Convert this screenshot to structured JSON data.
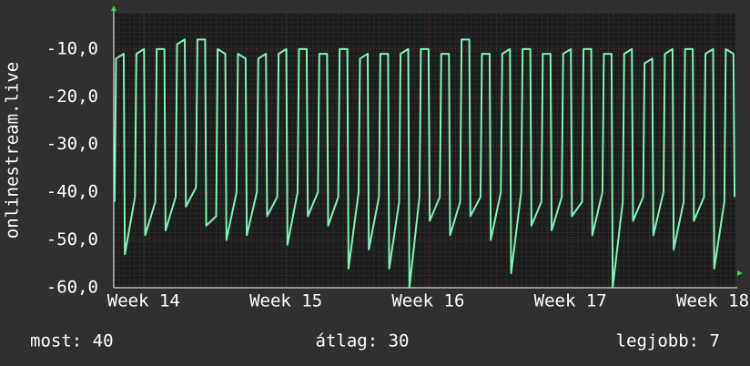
{
  "chart_data": {
    "type": "line",
    "y_label": "onlinestream.live",
    "x": [
      13.796,
      13.806,
      13.86,
      13.868,
      13.939,
      13.949,
      14.003,
      14.011,
      14.082,
      14.092,
      14.146,
      14.154,
      14.225,
      14.235,
      14.289,
      14.297,
      14.368,
      14.378,
      14.432,
      14.44,
      14.51,
      14.52,
      14.574,
      14.582,
      14.653,
      14.663,
      14.717,
      14.725,
      14.796,
      14.806,
      14.86,
      14.868,
      14.939,
      14.949,
      15.003,
      15.011,
      15.082,
      15.092,
      15.146,
      15.154,
      15.225,
      15.235,
      15.289,
      15.297,
      15.368,
      15.378,
      15.432,
      15.44,
      15.511,
      15.521,
      15.575,
      15.583,
      15.654,
      15.664,
      15.718,
      15.726,
      15.796,
      15.806,
      15.86,
      15.868,
      15.939,
      15.949,
      16.003,
      16.011,
      16.082,
      16.092,
      16.146,
      16.154,
      16.225,
      16.235,
      16.289,
      16.297,
      16.368,
      16.378,
      16.432,
      16.44,
      16.511,
      16.521,
      16.575,
      16.583,
      16.654,
      16.664,
      16.718,
      16.726,
      16.796,
      16.806,
      16.86,
      16.868,
      16.939,
      16.949,
      17.003,
      17.011,
      17.082,
      17.092,
      17.146,
      17.154,
      17.225,
      17.235,
      17.289,
      17.297,
      17.368,
      17.378,
      17.432,
      17.44,
      17.511,
      17.521,
      17.575,
      17.583,
      17.654,
      17.664,
      17.718,
      17.726,
      17.796,
      17.806,
      17.86,
      17.868,
      17.939,
      17.949,
      18.003,
      18.011,
      18.082,
      18.092,
      18.146,
      18.154
    ],
    "series": [
      {
        "color": "#7ff5b5",
        "values": [
          -42,
          -12,
          -11,
          -53,
          -41,
          -11,
          -10,
          -49,
          -42,
          -10,
          -10,
          -48,
          -41,
          -9,
          -8,
          -43,
          -39,
          -8,
          -8,
          -47,
          -45,
          -10,
          -11,
          -50,
          -40,
          -11,
          -12,
          -49,
          -40,
          -12,
          -11,
          -45,
          -41,
          -11,
          -10,
          -51,
          -40,
          -10,
          -10,
          -45,
          -40,
          -11,
          -11,
          -47,
          -41,
          -10,
          -10,
          -56,
          -40,
          -12,
          -11,
          -52,
          -41,
          -11,
          -11,
          -56,
          -42,
          -11,
          -10,
          -60,
          -41,
          -10,
          -10,
          -46,
          -41,
          -11,
          -11,
          -49,
          -42,
          -8,
          -8,
          -45,
          -41,
          -11,
          -11,
          -50,
          -40,
          -11,
          -10,
          -57,
          -40,
          -10,
          -10,
          -47,
          -42,
          -11,
          -11,
          -48,
          -41,
          -11,
          -10,
          -45,
          -42,
          -10,
          -10,
          -49,
          -40,
          -11,
          -11,
          -60,
          -42,
          -11,
          -10,
          -46,
          -41,
          -13,
          -12,
          -49,
          -40,
          -11,
          -10,
          -52,
          -42,
          -10,
          -10,
          -46,
          -41,
          -11,
          -10,
          -56,
          -42,
          -10,
          -11,
          -41
        ]
      }
    ],
    "xlim": [
      13.79,
      18.16
    ],
    "xticks": [
      {
        "value": 14,
        "label": "Week 14"
      },
      {
        "value": 15,
        "label": "Week 15"
      },
      {
        "value": 16,
        "label": "Week 16"
      },
      {
        "value": 17,
        "label": "Week 17"
      },
      {
        "value": 18,
        "label": "Week 18"
      }
    ],
    "ylim": [
      -60,
      -2.4
    ],
    "yticks": [
      {
        "value": -60,
        "label": "-60,0"
      },
      {
        "value": -50,
        "label": "-50,0"
      },
      {
        "value": -40,
        "label": "-40,0"
      },
      {
        "value": -30,
        "label": "-30,0"
      },
      {
        "value": -20,
        "label": "-20,0"
      },
      {
        "value": -10,
        "label": "-10,0"
      }
    ],
    "grid": true,
    "stats": [
      "most: 40",
      "átlag: 30",
      "legjobb: 7"
    ]
  }
}
